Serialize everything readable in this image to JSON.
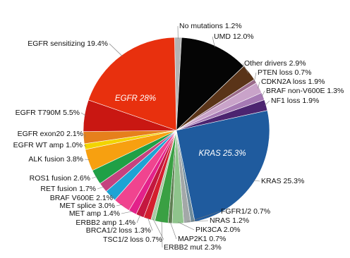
{
  "chart_data": {
    "type": "pie",
    "categories": [
      "No mutations",
      "UMD",
      "Other drivers",
      "PTEN loss",
      "CDKN2A loss",
      "BRAF non-V600E",
      "NF1 loss",
      "KRAS",
      "FGFR1/2",
      "NRAS",
      "PIK3CA",
      "MAP2K1",
      "ERBB2 mut",
      "TSC1/2 loss",
      "BRCA1/2 loss",
      "ERBB2 amp",
      "MET amp",
      "MET splice",
      "BRAF V600E",
      "RET fusion",
      "ROS1 fusion",
      "ALK fusion",
      "EGFR WT amp",
      "EGFR exon20",
      "EGFR T790M",
      "EGFR sensitizing"
    ],
    "values": [
      1.2,
      12.0,
      2.9,
      0.7,
      1.9,
      1.3,
      1.9,
      25.3,
      0.7,
      1.2,
      2.0,
      0.7,
      2.3,
      0.7,
      1.3,
      1.4,
      1.4,
      3.0,
      2.1,
      1.7,
      2.6,
      3.8,
      1.0,
      2.1,
      5.5,
      19.4
    ],
    "value_labels": [
      "1.2%",
      "12.0%",
      "2.9%",
      "0.7%",
      "1.9%",
      "1.3%",
      "1.9%",
      "25.3%",
      "0.7%",
      "1.2%",
      "2.0%",
      "0.7%",
      "2.3%",
      "0.7%",
      "1.3%",
      "1.4%",
      "1.4%",
      "3.0%",
      "2.1%",
      "1.7%",
      "2.6%",
      "3.8%",
      "1.0%",
      "2.1%",
      "5.5%",
      "19.4%"
    ],
    "colors": [
      "#b4b4b4",
      "#050505",
      "#5a3418",
      "#9a6a8a",
      "#c9a3c9",
      "#a679b4",
      "#4c2470",
      "#1f5b9e",
      "#6f8c9c",
      "#a3a8a8",
      "#8fc48c",
      "#5e7e52",
      "#3aa043",
      "#a9c9a4",
      "#d41f2e",
      "#c4173f",
      "#e3218a",
      "#f0448f",
      "#1ea3d4",
      "#c5427f",
      "#1fa046",
      "#f7a010",
      "#f2d400",
      "#e6801c",
      "#c91712",
      "#e8300e"
    ],
    "annotations": [
      "EGFR 28%",
      "KRAS 25.3%"
    ]
  }
}
